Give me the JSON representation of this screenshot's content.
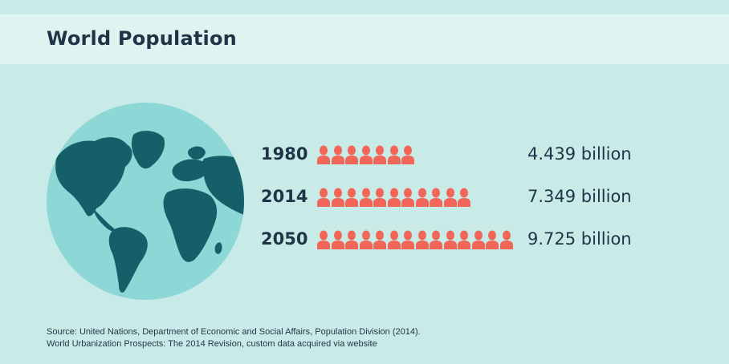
{
  "title": "World Population",
  "colors": {
    "background": "#c9ebe8",
    "header_band": "#dff3f1",
    "text": "#1f3447",
    "person_icon": "#f2665a",
    "globe_ocean": "#8ed7d7",
    "globe_land": "#155f68"
  },
  "icons": {
    "person": "person-icon",
    "globe": "globe-icon"
  },
  "chart_data": {
    "type": "bar",
    "categories": [
      "1980",
      "2014",
      "2050"
    ],
    "values": [
      4.439,
      7.349,
      9.725
    ],
    "value_labels": [
      "4.439 billion",
      "7.349 billion",
      "9.725 billion"
    ],
    "icon_counts": [
      7,
      11,
      14
    ],
    "unit": "billion"
  },
  "source": {
    "line1": "Source: United Nations, Department of Economic and Social Affairs, Population Division (2014).",
    "line2": "World Urbanization Prospects: The 2014 Revision, custom data acquired via website"
  }
}
